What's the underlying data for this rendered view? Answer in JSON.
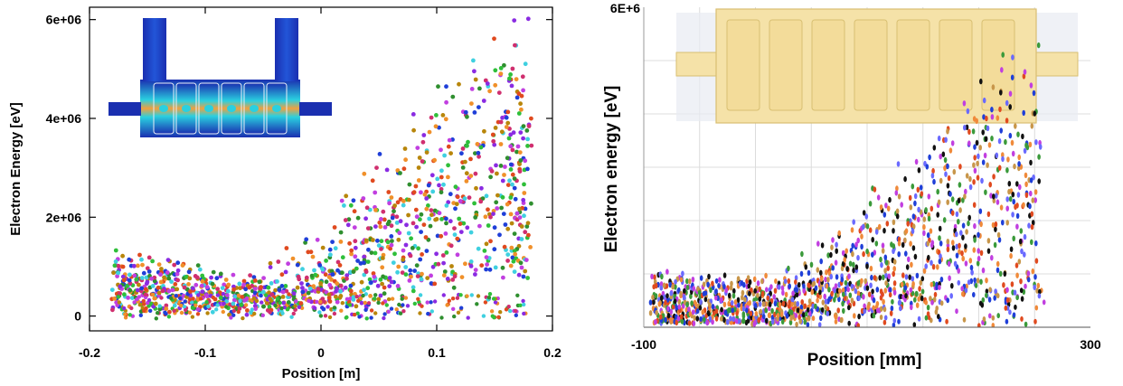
{
  "chart_data": [
    {
      "type": "scatter",
      "xlabel": "Position [m]",
      "ylabel": "Electron Energy [eV]",
      "xlim": [
        -0.2,
        0.2
      ],
      "ylim": [
        -300000,
        6250000
      ],
      "x_ticks": [
        -0.2,
        -0.1,
        0,
        0.1,
        0.2
      ],
      "x_tick_labels": [
        "-0.2",
        "-0.1",
        "0",
        "0.1",
        "0.2"
      ],
      "y_ticks": [
        0,
        2000000,
        4000000,
        6000000
      ],
      "y_tick_labels": [
        "0",
        "2e+06",
        "4e+06",
        "6e+06"
      ],
      "grid": false,
      "inset": "cavity field map (upper left)",
      "series_colors": [
        "#1f3fd8",
        "#2fbf3a",
        "#e04a1f",
        "#c13fe0",
        "#f0902a",
        "#3fd0e0",
        "#b8860b",
        "#8a2be2",
        "#2f8f2f",
        "#d02f6f"
      ],
      "series": [
        {
          "x": [
            -0.18,
            -0.14,
            -0.1,
            -0.05,
            0.0,
            0.04,
            0.08,
            0.12,
            0.16,
            0.18
          ],
          "values": [
            1300000,
            1250000,
            1100000,
            1000000,
            1800000,
            3000000,
            4200000,
            5300000,
            5900000,
            6000000
          ]
        },
        {
          "x": [
            -0.18,
            -0.14,
            -0.1,
            -0.05,
            0.0,
            0.04,
            0.08,
            0.12,
            0.16,
            0.18
          ],
          "values": [
            1200000,
            1100000,
            950000,
            800000,
            1500000,
            2600000,
            3800000,
            4900000,
            5600000,
            5800000
          ]
        },
        {
          "x": [
            -0.18,
            -0.14,
            -0.1,
            -0.05,
            0.0,
            0.04,
            0.08,
            0.12,
            0.16,
            0.18
          ],
          "values": [
            1100000,
            1000000,
            900000,
            700000,
            1200000,
            2300000,
            3400000,
            4500000,
            5200000,
            5500000
          ]
        },
        {
          "x": [
            -0.18,
            -0.14,
            -0.1,
            -0.05,
            0.0,
            0.04,
            0.08,
            0.12,
            0.16,
            0.18
          ],
          "values": [
            1000000,
            900000,
            800000,
            600000,
            1000000,
            2000000,
            3000000,
            4100000,
            4900000,
            5100000
          ]
        },
        {
          "x": [
            -0.18,
            -0.14,
            -0.1,
            -0.05,
            0.0,
            0.04,
            0.08,
            0.12,
            0.16,
            0.18
          ],
          "values": [
            900000,
            800000,
            700000,
            500000,
            800000,
            1700000,
            2600000,
            3600000,
            4400000,
            4700000
          ]
        },
        {
          "x": [
            -0.18,
            -0.14,
            -0.1,
            -0.05,
            0.0,
            0.04,
            0.08,
            0.12,
            0.16,
            0.18
          ],
          "values": [
            800000,
            700000,
            600000,
            400000,
            600000,
            1300000,
            2200000,
            3100000,
            3900000,
            4200000
          ]
        }
      ]
    },
    {
      "type": "scatter",
      "xlabel": "Position [mm]",
      "ylabel": "Electron energy [eV]",
      "xlim": [
        -100,
        300
      ],
      "ylim": [
        0,
        6000000
      ],
      "x_ticks": [
        -100,
        300
      ],
      "x_tick_labels": [
        "-100",
        "300"
      ],
      "y_ticks": [
        6000000
      ],
      "y_tick_labels": [
        "6E+6"
      ],
      "grid": true,
      "inset": "cavity drawing (top)",
      "series_colors": [
        "#1f3fd8",
        "#3a9a3a",
        "#e04a1f",
        "#c13fe0",
        "#c8964a",
        "#111111",
        "#f08a3a",
        "#6a6aff"
      ],
      "series": [
        {
          "x": [
            -92,
            -60,
            -20,
            20,
            60,
            100,
            140,
            180,
            220,
            255
          ],
          "values": [
            1100000,
            1050000,
            950000,
            1000000,
            1700000,
            2600000,
            3400000,
            4300000,
            5200000,
            5300000
          ]
        },
        {
          "x": [
            -92,
            -60,
            -20,
            20,
            60,
            100,
            140,
            180,
            220,
            255
          ],
          "values": [
            1000000,
            950000,
            850000,
            900000,
            1500000,
            2300000,
            3100000,
            4000000,
            4900000,
            5000000
          ]
        },
        {
          "x": [
            -92,
            -60,
            -20,
            20,
            60,
            100,
            140,
            180,
            220,
            255
          ],
          "values": [
            900000,
            850000,
            750000,
            800000,
            1300000,
            2000000,
            2800000,
            3700000,
            4500000,
            4700000
          ]
        },
        {
          "x": [
            -92,
            -60,
            -20,
            20,
            60,
            100,
            140,
            180,
            220,
            255
          ],
          "values": [
            800000,
            750000,
            650000,
            700000,
            1100000,
            1700000,
            2500000,
            3300000,
            4100000,
            4300000
          ]
        },
        {
          "x": [
            -92,
            -60,
            -20,
            20,
            60,
            100,
            140,
            180,
            220,
            255
          ],
          "values": [
            700000,
            650000,
            550000,
            600000,
            900000,
            1400000,
            2100000,
            2900000,
            3700000,
            3900000
          ]
        }
      ]
    }
  ]
}
